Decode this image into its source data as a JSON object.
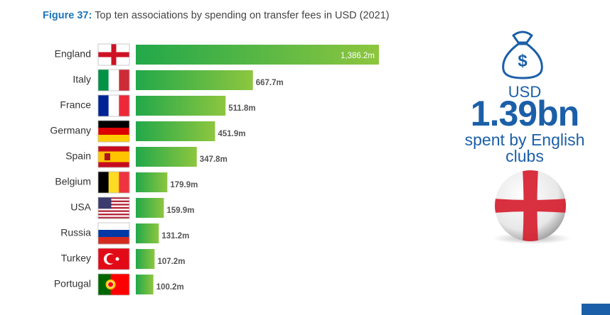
{
  "chart_data": {
    "type": "bar",
    "orientation": "horizontal",
    "figure_label": "Figure 37:",
    "title": "Top ten associations by spending on transfer fees in USD (2021)",
    "categories": [
      "England",
      "Italy",
      "France",
      "Germany",
      "Spain",
      "Belgium",
      "USA",
      "Russia",
      "Turkey",
      "Portugal"
    ],
    "values": [
      1386.2,
      667.7,
      511.8,
      451.9,
      347.8,
      179.9,
      159.9,
      131.2,
      107.2,
      100.2
    ],
    "value_labels": [
      "1,386.2m",
      "667.7m",
      "511.8m",
      "451.9m",
      "347.8m",
      "179.9m",
      "159.9m",
      "131.2m",
      "107.2m",
      "100.2m"
    ],
    "color": [
      "#22a84a",
      "#8dc63f"
    ],
    "callout": {
      "currency": "USD",
      "amount": "1.39bn",
      "text_lines": [
        "spent by English",
        "clubs"
      ]
    }
  }
}
